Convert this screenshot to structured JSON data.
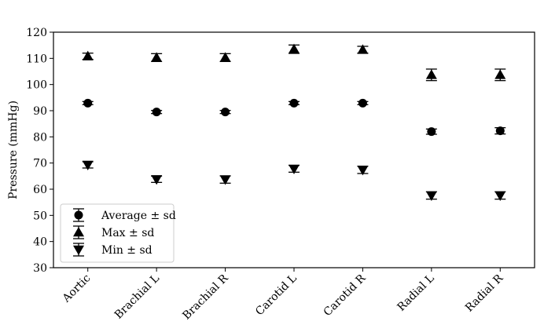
{
  "chart_data": {
    "type": "scatter",
    "title": "",
    "xlabel": "",
    "ylabel": "Pressure (mmHg)",
    "ylim": [
      30,
      120
    ],
    "yticks": [
      30,
      40,
      50,
      60,
      70,
      80,
      90,
      100,
      110,
      120
    ],
    "grid": false,
    "legend_position": "lower-left",
    "categories": [
      "Aortic",
      "Brachial L",
      "Brachial R",
      "Carotid L",
      "Carotid R",
      "Radial L",
      "Radial R"
    ],
    "series": [
      {
        "name": "Average ± sd",
        "marker": "circle",
        "values": [
          92.9,
          89.5,
          89.5,
          92.9,
          92.9,
          82.0,
          82.3
        ],
        "sd": [
          0.6,
          0.6,
          0.6,
          0.6,
          0.6,
          1.0,
          1.2
        ]
      },
      {
        "name": "Max ± sd",
        "marker": "triangle-up",
        "values": [
          110.8,
          110.3,
          110.3,
          113.5,
          113.3,
          103.7,
          103.7
        ],
        "sd": [
          1.2,
          1.5,
          1.5,
          1.6,
          1.3,
          2.2,
          2.2
        ]
      },
      {
        "name": "Min ± sd",
        "marker": "triangle-down",
        "values": [
          69.3,
          63.8,
          63.7,
          67.8,
          67.4,
          57.6,
          57.6
        ],
        "sd": [
          1.2,
          1.2,
          1.4,
          1.3,
          1.4,
          1.4,
          1.4
        ]
      }
    ]
  },
  "colors": {
    "marker": "#000000",
    "axis": "#000000",
    "legend_border": "#cccccc"
  }
}
